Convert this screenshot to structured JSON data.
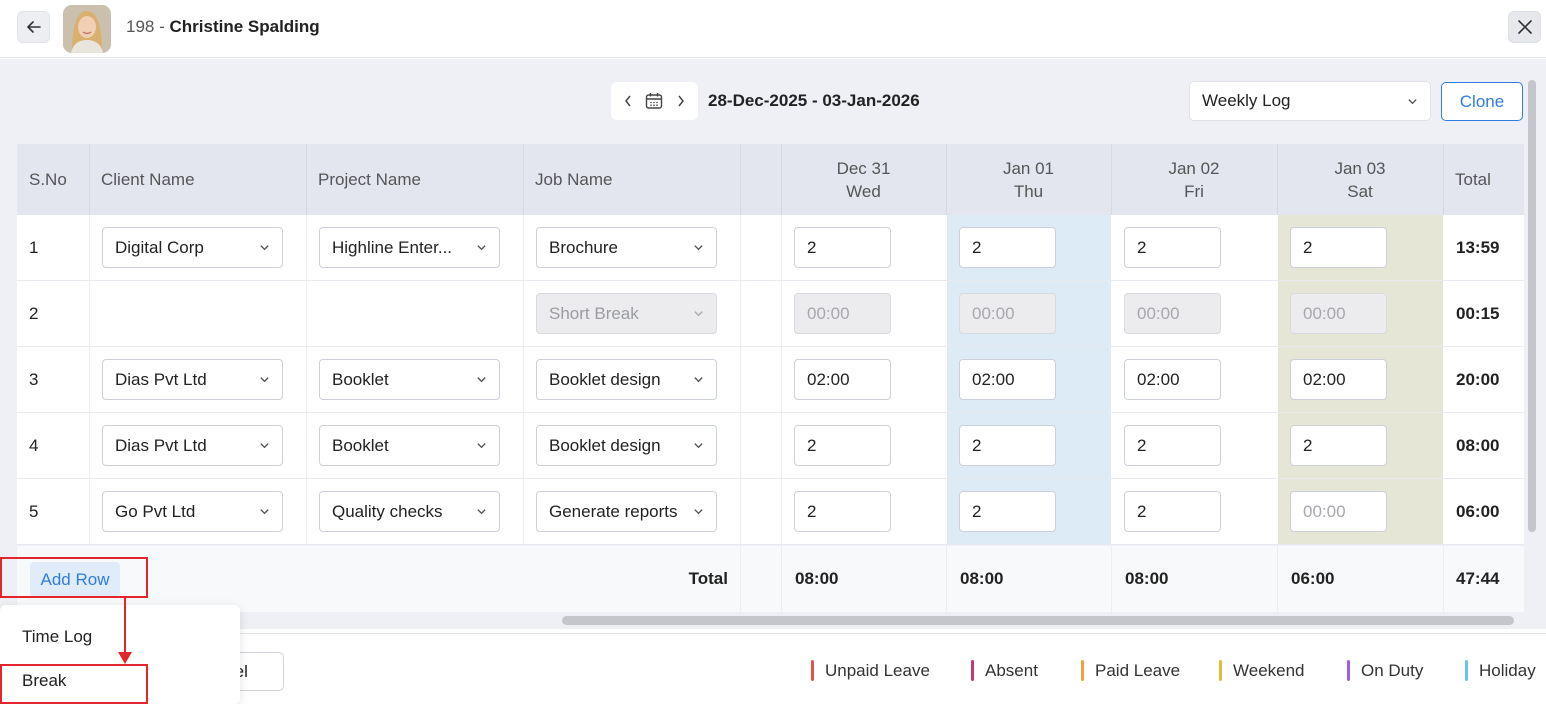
{
  "header": {
    "back_icon": "arrow-left-icon",
    "employee_id": "198 - ",
    "employee_name": "Christine Spalding",
    "close_icon": "close-icon"
  },
  "toolbar": {
    "prev_icon": "chevron-left-icon",
    "calendar_icon": "calendar-icon",
    "next_icon": "chevron-right-icon",
    "date_range": "28-Dec-2025 - 03-Jan-2026",
    "view_value": "Weekly Log",
    "clone_label": "Clone"
  },
  "table": {
    "headers": {
      "sno": "S.No",
      "client": "Client Name",
      "project": "Project Name",
      "job": "Job Name",
      "total": "Total"
    },
    "days": [
      {
        "date": "Dec 31",
        "day": "Wed"
      },
      {
        "date": "Jan 01",
        "day": "Thu"
      },
      {
        "date": "Jan 02",
        "day": "Fri"
      },
      {
        "date": "Jan 03",
        "day": "Sat"
      }
    ],
    "rows": [
      {
        "sno": "1",
        "client": "Digital Corp",
        "project": "Highline Enter...",
        "job": "Brochure",
        "hours": [
          "2",
          "2",
          "2",
          "2"
        ],
        "total": "13:59"
      },
      {
        "sno": "2",
        "client": "",
        "project": "",
        "job": "Short Break",
        "hours": [
          "00:00",
          "00:00",
          "00:00",
          "00:00"
        ],
        "total": "00:15"
      },
      {
        "sno": "3",
        "client": "Dias Pvt Ltd",
        "project": "Booklet",
        "job": "Booklet design",
        "hours": [
          "02:00",
          "02:00",
          "02:00",
          "02:00"
        ],
        "total": "20:00"
      },
      {
        "sno": "4",
        "client": "Dias Pvt Ltd",
        "project": "Booklet",
        "job": "Booklet design",
        "hours": [
          "2",
          "2",
          "2",
          "2"
        ],
        "total": "08:00"
      },
      {
        "sno": "5",
        "client": "Go Pvt Ltd",
        "project": "Quality checks",
        "job": "Generate reports",
        "hours": [
          "2",
          "2",
          "2",
          "00:00"
        ],
        "total": "06:00"
      }
    ],
    "totals": {
      "label": "Total",
      "days": [
        "08:00",
        "08:00",
        "08:00",
        "06:00"
      ],
      "grand": "47:44"
    },
    "add_row_label": "Add Row"
  },
  "add_row_menu": {
    "items": [
      "Time Log",
      "Break"
    ]
  },
  "footer": {
    "cancel_label": "Cancel",
    "legend": [
      {
        "label": "Unpaid Leave",
        "color": "#e0564f"
      },
      {
        "label": "Absent",
        "color": "#c03a78"
      },
      {
        "label": "Paid Leave",
        "color": "#f0a23a"
      },
      {
        "label": "Weekend",
        "color": "#e3bb3c"
      },
      {
        "label": "On Duty",
        "color": "#a45ce6"
      },
      {
        "label": "Holiday",
        "color": "#68c3ec"
      }
    ]
  },
  "colors": {
    "accent": "#2f7de1",
    "highlight_red": "#e3262b",
    "thursday_column": "#dcebf6",
    "saturday_column": "#e6e6d6"
  }
}
